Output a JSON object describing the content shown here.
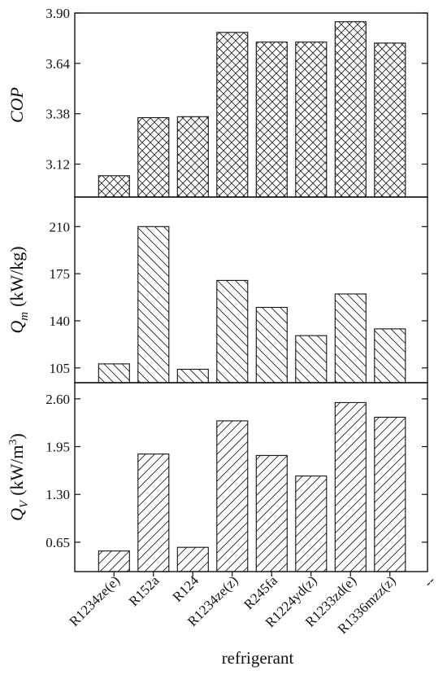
{
  "chart_data": {
    "type": "bar",
    "categories": [
      "R1234ze(e)",
      "R152a",
      "R124",
      "R1234ze(z)",
      "R245fa",
      "R1224yd(z)",
      "R1233zd(e)",
      "R1336mzz(z)"
    ],
    "xlabel": "refrigerant",
    "extra_tick_label": "--",
    "panels": [
      {
        "ylabel": {
          "main": "COP",
          "sub": "",
          "unit": ""
        },
        "ylim": [
          2.95,
          3.9
        ],
        "yticks": [
          3.12,
          3.38,
          3.64,
          3.9
        ],
        "ytick_labels": [
          "3.12",
          "3.38",
          "3.64",
          "3.90"
        ],
        "hatch": "cross",
        "values": [
          3.06,
          3.36,
          3.365,
          3.8,
          3.75,
          3.75,
          3.855,
          3.745
        ]
      },
      {
        "ylabel": {
          "main": "Q",
          "sub": "m",
          "unit": "(kW/kg)"
        },
        "ylim": [
          94,
          232
        ],
        "yticks": [
          105,
          140,
          175,
          210
        ],
        "ytick_labels": [
          "105",
          "140",
          "175",
          "210"
        ],
        "hatch": "backslash",
        "values": [
          108,
          210,
          104,
          170,
          150,
          129,
          160,
          134
        ]
      },
      {
        "ylabel": {
          "main": "Q",
          "sub": "V",
          "unit": "(kW/m",
          "unit_sup": "3",
          "unit_end": ")"
        },
        "ylim": [
          0.25,
          2.82
        ],
        "yticks": [
          0.65,
          1.3,
          1.95,
          2.6
        ],
        "ytick_labels": [
          "0.65",
          "1.30",
          "1.95",
          "2.60"
        ],
        "hatch": "slash",
        "values": [
          0.53,
          1.85,
          0.58,
          2.3,
          1.83,
          1.55,
          2.55,
          2.35
        ]
      }
    ]
  }
}
